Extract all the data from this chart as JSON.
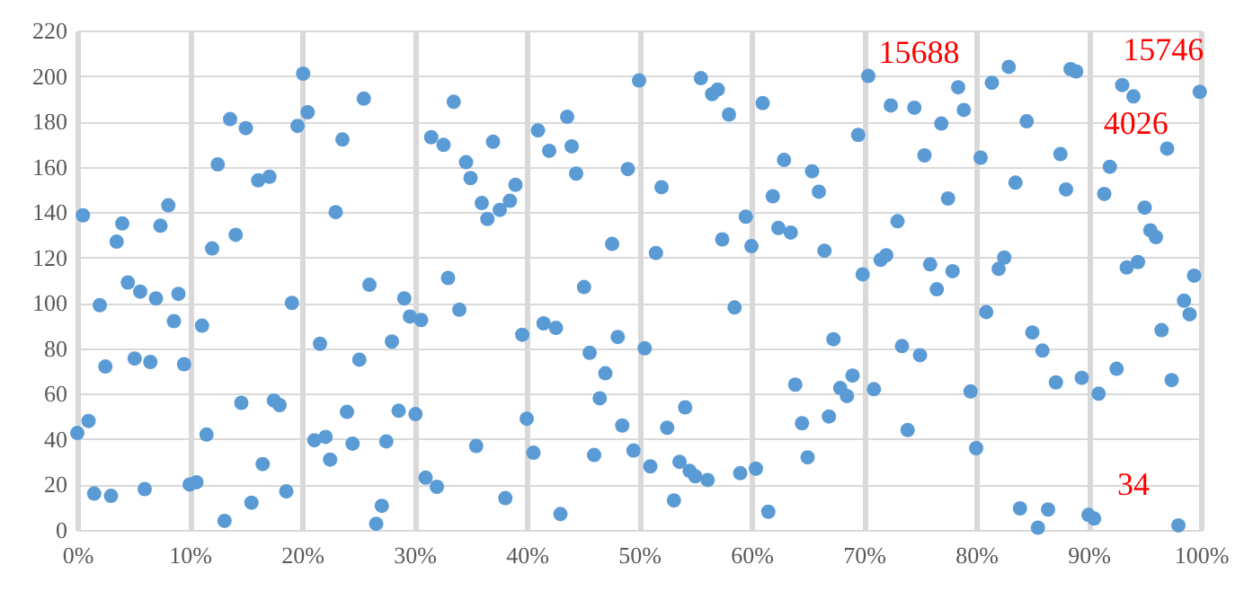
{
  "chart_data": {
    "type": "scatter",
    "x": [
      0.5,
      0.0,
      1.0,
      1.5,
      2.0,
      2.5,
      3.0,
      3.5,
      4.0,
      4.5,
      5.1,
      5.6,
      6.0,
      6.5,
      7.0,
      7.4,
      8.1,
      8.6,
      9.0,
      9.5,
      10.0,
      10.6,
      11.1,
      11.5,
      12.0,
      12.5,
      13.1,
      13.6,
      14.1,
      14.6,
      15.0,
      15.5,
      16.1,
      16.5,
      17.1,
      17.5,
      18.0,
      18.6,
      19.1,
      19.6,
      20.1,
      20.5,
      21.1,
      21.6,
      22.1,
      22.5,
      23.0,
      23.6,
      24.0,
      24.5,
      25.1,
      25.5,
      26.0,
      26.6,
      27.1,
      27.5,
      28.0,
      28.6,
      29.1,
      29.6,
      30.1,
      30.6,
      31.0,
      31.5,
      32.0,
      32.6,
      33.0,
      33.5,
      34.0,
      34.6,
      35.0,
      35.5,
      36.0,
      36.5,
      37.0,
      37.6,
      38.1,
      38.5,
      39.0,
      39.6,
      40.0,
      40.6,
      41.0,
      41.5,
      42.0,
      42.6,
      43.0,
      43.6,
      44.0,
      44.4,
      45.1,
      45.6,
      46.0,
      46.5,
      47.0,
      47.6,
      48.1,
      48.5,
      49.0,
      49.5,
      50.0,
      50.5,
      51.0,
      51.5,
      52.0,
      52.5,
      53.1,
      53.6,
      54.1,
      54.5,
      55.0,
      55.5,
      56.1,
      56.5,
      57.0,
      57.4,
      58.0,
      58.5,
      59.0,
      59.5,
      60.0,
      60.4,
      61.0,
      61.5,
      61.9,
      62.4,
      62.9,
      63.5,
      63.9,
      64.5,
      65.0,
      65.4,
      66.0,
      66.5,
      66.9,
      67.3,
      67.9,
      68.5,
      69.0,
      69.5,
      69.9,
      70.4,
      70.9,
      71.5,
      72.0,
      72.4,
      73.0,
      73.4,
      73.9,
      74.5,
      75.0,
      75.4,
      75.9,
      76.5,
      76.9,
      77.5,
      77.9,
      78.4,
      78.9,
      79.5,
      80.0,
      80.4,
      80.9,
      81.4,
      82.0,
      82.5,
      82.9,
      83.5,
      83.9,
      84.5,
      85.0,
      85.5,
      85.9,
      86.4,
      87.1,
      87.5,
      88.0,
      88.4,
      88.9,
      89.4,
      90.0,
      90.5,
      90.9,
      91.4,
      91.9,
      92.5,
      93.0,
      93.4,
      94.0,
      94.4,
      95.0,
      95.5,
      96.0,
      96.5,
      97.0,
      97.4,
      98.0,
      98.5,
      99.0,
      99.4,
      99.9
    ],
    "values": [
      138.6,
      42.7,
      48,
      16,
      99,
      72,
      15,
      127,
      135,
      109,
      75.5,
      105,
      18,
      74,
      102,
      134,
      143,
      92,
      104,
      73,
      20,
      21,
      90,
      42,
      124,
      161,
      4,
      181,
      130,
      56,
      177,
      12,
      154,
      29,
      155.6,
      57,
      55,
      17,
      100,
      178,
      201,
      184,
      39.5,
      82,
      41,
      31,
      140,
      172,
      52,
      38,
      75,
      190,
      108,
      2.7,
      10.6,
      39,
      83,
      52.5,
      102,
      94,
      51,
      92.5,
      23,
      173,
      19,
      169.6,
      111,
      188.6,
      97,
      162,
      155,
      37,
      144,
      137,
      171,
      141,
      14,
      145,
      152,
      86,
      49,
      34,
      176,
      91,
      167,
      89,
      7,
      182,
      169,
      157,
      107,
      78,
      33,
      58,
      69,
      126,
      85,
      46,
      159,
      35,
      198,
      80,
      28,
      122,
      151,
      45,
      13,
      30,
      54,
      26,
      23.6,
      199,
      22,
      192,
      194,
      128,
      183,
      98,
      25,
      138,
      125,
      27,
      188,
      8,
      147,
      133,
      163,
      131,
      64,
      47,
      32,
      158,
      149,
      123,
      50,
      84,
      62.5,
      59,
      68,
      174,
      112.6,
      200,
      62,
      119,
      121,
      187,
      136,
      81,
      44,
      186,
      77,
      165,
      117,
      106,
      179,
      146,
      114,
      195,
      185,
      61,
      36,
      164,
      96,
      197,
      115,
      120,
      204,
      153,
      9.5,
      180,
      87,
      1,
      79,
      9,
      65,
      165.6,
      150,
      203,
      202,
      67,
      6.6,
      5,
      60,
      148,
      160,
      71,
      196,
      115.6,
      191,
      118,
      142,
      132,
      129,
      88,
      168,
      66,
      2,
      101,
      95,
      112,
      193
    ],
    "color": "#5b9bd5",
    "marker": "circle",
    "annotations": [
      {
        "text": "15688",
        "x": 81.4,
        "y": 197
      },
      {
        "text": "15746",
        "x": 88.9,
        "y": 202
      },
      {
        "text": "4026",
        "x": 87.5,
        "y": 165.6
      },
      {
        "text": "34",
        "x": 90.0,
        "y": 6.6
      }
    ],
    "xlim": [
      0,
      100
    ],
    "ylim": [
      0,
      220
    ],
    "xticks": [
      {
        "value": 0,
        "label": "0%"
      },
      {
        "value": 10,
        "label": "10%"
      },
      {
        "value": 20,
        "label": "20%"
      },
      {
        "value": 30,
        "label": "30%"
      },
      {
        "value": 40,
        "label": "40%"
      },
      {
        "value": 50,
        "label": "50%"
      },
      {
        "value": 60,
        "label": "60%"
      },
      {
        "value": 70,
        "label": "70%"
      },
      {
        "value": 80,
        "label": "80%"
      },
      {
        "value": 90,
        "label": "90%"
      },
      {
        "value": 100,
        "label": "100%"
      }
    ],
    "yticks": [
      0,
      20,
      40,
      60,
      80,
      100,
      120,
      140,
      160,
      180,
      200,
      220
    ],
    "grid": true
  }
}
